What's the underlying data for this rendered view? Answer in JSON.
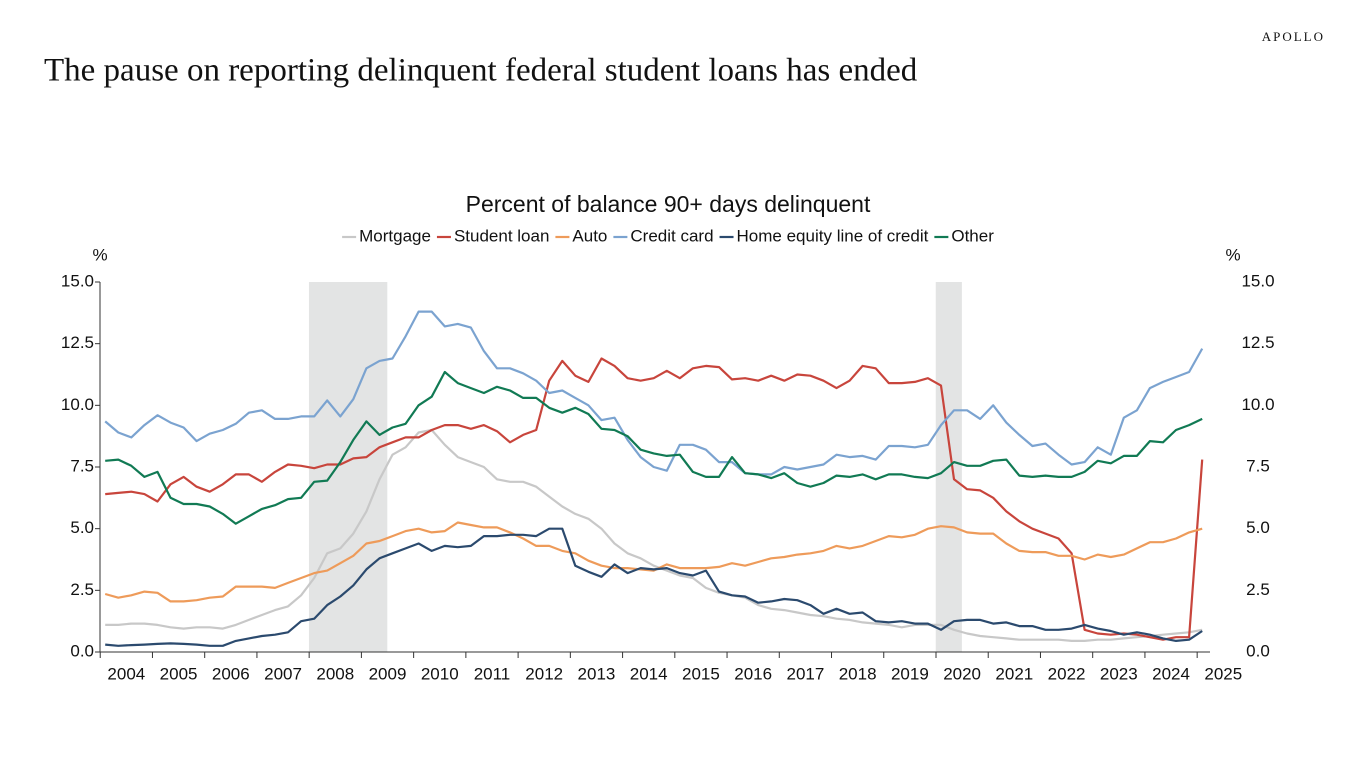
{
  "brand": "APOLLO",
  "headline": "The pause on reporting delinquent federal student loans has ended",
  "chart_data": {
    "type": "line",
    "title": "Percent of balance 90+ days delinquent",
    "y_unit": "%",
    "y2_unit": "%",
    "x": [
      2004,
      2004.25,
      2004.5,
      2004.75,
      2005,
      2005.25,
      2005.5,
      2005.75,
      2006,
      2006.25,
      2006.5,
      2006.75,
      2007,
      2007.25,
      2007.5,
      2007.75,
      2008,
      2008.25,
      2008.5,
      2008.75,
      2009,
      2009.25,
      2009.5,
      2009.75,
      2010,
      2010.25,
      2010.5,
      2010.75,
      2011,
      2011.25,
      2011.5,
      2011.75,
      2012,
      2012.25,
      2012.5,
      2012.75,
      2013,
      2013.25,
      2013.5,
      2013.75,
      2014,
      2014.25,
      2014.5,
      2014.75,
      2015,
      2015.25,
      2015.5,
      2015.75,
      2016,
      2016.25,
      2016.5,
      2016.75,
      2017,
      2017.25,
      2017.5,
      2017.75,
      2018,
      2018.25,
      2018.5,
      2018.75,
      2019,
      2019.25,
      2019.5,
      2019.75,
      2020,
      2020.25,
      2020.5,
      2020.75,
      2021,
      2021.25,
      2021.5,
      2021.75,
      2022,
      2022.25,
      2022.5,
      2022.75,
      2023,
      2023.25,
      2023.5,
      2023.75,
      2024,
      2024.25,
      2024.5,
      2024.75,
      2025
    ],
    "xlim": [
      2003.9,
      2025.15
    ],
    "xticks": [
      2004,
      2005,
      2006,
      2007,
      2008,
      2009,
      2010,
      2011,
      2012,
      2013,
      2014,
      2015,
      2016,
      2017,
      2018,
      2019,
      2020,
      2021,
      2022,
      2023,
      2024,
      2025
    ],
    "ylim": [
      0,
      15
    ],
    "yticks": [
      {
        "value": 0,
        "label": "0.0"
      },
      {
        "value": 2.5,
        "label": "2.5"
      },
      {
        "value": 5,
        "label": "5.0"
      },
      {
        "value": 7.5,
        "label": "7.5"
      },
      {
        "value": 10,
        "label": "10.0"
      },
      {
        "value": 12.5,
        "label": "12.5"
      },
      {
        "value": 15,
        "label": "15.0"
      }
    ],
    "y2lim": [
      0,
      15
    ],
    "y2ticks": [
      {
        "value": 0,
        "label": "0.0"
      },
      {
        "value": 2.5,
        "label": "2.5"
      },
      {
        "value": 5,
        "label": "5.0"
      },
      {
        "value": 7.5,
        "label": "7.5"
      },
      {
        "value": 10,
        "label": "10.0"
      },
      {
        "value": 12.5,
        "label": "12.5"
      },
      {
        "value": 15,
        "label": "15.0"
      }
    ],
    "recessions": [
      [
        2007.9,
        2009.4
      ],
      [
        2019.9,
        2020.4
      ]
    ],
    "recession_color": "#e3e4e4",
    "series": [
      {
        "name": "Mortgage",
        "color": "#c8c8c8",
        "values": [
          1.1,
          1.1,
          1.15,
          1.15,
          1.1,
          1.0,
          0.95,
          1.0,
          1.0,
          0.95,
          1.1,
          1.3,
          1.5,
          1.7,
          1.85,
          2.3,
          3.0,
          4.0,
          4.2,
          4.8,
          5.7,
          7.0,
          8.0,
          8.3,
          8.9,
          9.0,
          8.4,
          7.9,
          7.7,
          7.5,
          7.0,
          6.9,
          6.9,
          6.7,
          6.3,
          5.9,
          5.6,
          5.4,
          5.0,
          4.4,
          4.0,
          3.8,
          3.5,
          3.3,
          3.1,
          3.0,
          2.6,
          2.4,
          2.3,
          2.2,
          1.9,
          1.75,
          1.7,
          1.6,
          1.5,
          1.45,
          1.35,
          1.3,
          1.2,
          1.15,
          1.1,
          1.0,
          1.1,
          1.1,
          1.1,
          0.9,
          0.75,
          0.65,
          0.6,
          0.55,
          0.5,
          0.5,
          0.5,
          0.5,
          0.45,
          0.45,
          0.5,
          0.5,
          0.55,
          0.6,
          0.65,
          0.7,
          0.75,
          0.8,
          0.9
        ]
      },
      {
        "name": "Student loan",
        "color": "#c8453c",
        "values": [
          6.4,
          6.45,
          6.5,
          6.4,
          6.1,
          6.8,
          7.1,
          6.7,
          6.5,
          6.8,
          7.2,
          7.2,
          6.9,
          7.3,
          7.6,
          7.55,
          7.45,
          7.6,
          7.6,
          7.85,
          7.9,
          8.3,
          8.5,
          8.7,
          8.7,
          9.0,
          9.2,
          9.2,
          9.05,
          9.2,
          8.95,
          8.5,
          8.8,
          9.0,
          11.0,
          11.8,
          11.2,
          10.95,
          11.9,
          11.6,
          11.1,
          11.0,
          11.1,
          11.4,
          11.1,
          11.5,
          11.6,
          11.55,
          11.05,
          11.1,
          11.0,
          11.2,
          11.0,
          11.25,
          11.2,
          11.0,
          10.7,
          11.0,
          11.6,
          11.5,
          10.9,
          10.9,
          10.95,
          11.1,
          10.8,
          7.0,
          6.6,
          6.55,
          6.25,
          5.7,
          5.3,
          5.0,
          4.8,
          4.6,
          4.0,
          0.9,
          0.75,
          0.7,
          0.75,
          0.7,
          0.6,
          0.5,
          0.6,
          0.6,
          7.8
        ]
      },
      {
        "name": "Auto",
        "color": "#ee9b5a",
        "values": [
          2.35,
          2.2,
          2.3,
          2.45,
          2.4,
          2.05,
          2.05,
          2.1,
          2.2,
          2.25,
          2.65,
          2.65,
          2.65,
          2.6,
          2.8,
          3.0,
          3.2,
          3.3,
          3.6,
          3.9,
          4.4,
          4.5,
          4.7,
          4.9,
          5.0,
          4.85,
          4.9,
          5.25,
          5.15,
          5.05,
          5.05,
          4.85,
          4.6,
          4.3,
          4.3,
          4.1,
          4.0,
          3.7,
          3.5,
          3.4,
          3.4,
          3.35,
          3.3,
          3.55,
          3.4,
          3.4,
          3.4,
          3.45,
          3.6,
          3.5,
          3.65,
          3.8,
          3.85,
          3.95,
          4.0,
          4.1,
          4.3,
          4.2,
          4.3,
          4.5,
          4.7,
          4.65,
          4.75,
          5.0,
          5.1,
          5.05,
          4.85,
          4.8,
          4.8,
          4.4,
          4.1,
          4.05,
          4.05,
          3.9,
          3.9,
          3.75,
          3.95,
          3.85,
          3.95,
          4.2,
          4.45,
          4.45,
          4.6,
          4.85,
          5.0
        ]
      },
      {
        "name": "Credit card",
        "color": "#7ba3d0",
        "values": [
          9.35,
          8.9,
          8.7,
          9.2,
          9.6,
          9.3,
          9.1,
          8.55,
          8.85,
          9.0,
          9.25,
          9.7,
          9.8,
          9.45,
          9.45,
          9.55,
          9.55,
          10.2,
          9.55,
          10.25,
          11.5,
          11.8,
          11.9,
          12.8,
          13.8,
          13.8,
          13.2,
          13.3,
          13.15,
          12.2,
          11.5,
          11.5,
          11.3,
          11.0,
          10.5,
          10.6,
          10.3,
          10.0,
          9.4,
          9.5,
          8.6,
          7.9,
          7.5,
          7.35,
          8.4,
          8.4,
          8.2,
          7.7,
          7.7,
          7.25,
          7.2,
          7.2,
          7.5,
          7.4,
          7.5,
          7.6,
          8.0,
          7.9,
          7.95,
          7.8,
          8.35,
          8.35,
          8.3,
          8.4,
          9.2,
          9.8,
          9.8,
          9.45,
          10.0,
          9.3,
          8.8,
          8.35,
          8.45,
          8.0,
          7.6,
          7.7,
          8.3,
          8.0,
          9.5,
          9.8,
          10.7,
          10.95,
          11.15,
          11.35,
          12.3
        ]
      },
      {
        "name": "Home equity line of credit",
        "color": "#2b4a6e",
        "values": [
          0.3,
          0.25,
          0.28,
          0.3,
          0.33,
          0.35,
          0.33,
          0.3,
          0.25,
          0.25,
          0.45,
          0.55,
          0.65,
          0.7,
          0.8,
          1.25,
          1.35,
          1.9,
          2.25,
          2.7,
          3.35,
          3.8,
          4.0,
          4.2,
          4.4,
          4.1,
          4.3,
          4.25,
          4.3,
          4.7,
          4.7,
          4.75,
          4.75,
          4.7,
          5.0,
          5.0,
          3.5,
          3.25,
          3.05,
          3.55,
          3.2,
          3.4,
          3.35,
          3.4,
          3.2,
          3.1,
          3.3,
          2.45,
          2.3,
          2.25,
          2.0,
          2.05,
          2.15,
          2.1,
          1.9,
          1.55,
          1.75,
          1.55,
          1.6,
          1.25,
          1.2,
          1.25,
          1.15,
          1.15,
          0.9,
          1.25,
          1.3,
          1.3,
          1.15,
          1.2,
          1.05,
          1.05,
          0.9,
          0.9,
          0.95,
          1.1,
          0.95,
          0.85,
          0.7,
          0.8,
          0.7,
          0.55,
          0.45,
          0.5,
          0.85
        ]
      },
      {
        "name": "Other",
        "color": "#117a54",
        "values": [
          7.75,
          7.8,
          7.55,
          7.1,
          7.3,
          6.25,
          6.0,
          6.0,
          5.9,
          5.6,
          5.2,
          5.5,
          5.8,
          5.95,
          6.2,
          6.25,
          6.9,
          6.95,
          7.7,
          8.6,
          9.35,
          8.8,
          9.1,
          9.25,
          10.0,
          10.35,
          11.35,
          10.9,
          10.7,
          10.5,
          10.75,
          10.6,
          10.3,
          10.3,
          9.9,
          9.7,
          9.9,
          9.65,
          9.05,
          9.0,
          8.75,
          8.2,
          8.05,
          7.95,
          8.0,
          7.3,
          7.1,
          7.1,
          7.9,
          7.25,
          7.2,
          7.05,
          7.25,
          6.85,
          6.7,
          6.85,
          7.15,
          7.1,
          7.2,
          7.0,
          7.2,
          7.2,
          7.1,
          7.05,
          7.25,
          7.7,
          7.55,
          7.55,
          7.75,
          7.8,
          7.15,
          7.1,
          7.15,
          7.1,
          7.1,
          7.3,
          7.75,
          7.65,
          7.95,
          7.95,
          8.55,
          8.5,
          9.0,
          9.2,
          9.45
        ]
      }
    ]
  }
}
